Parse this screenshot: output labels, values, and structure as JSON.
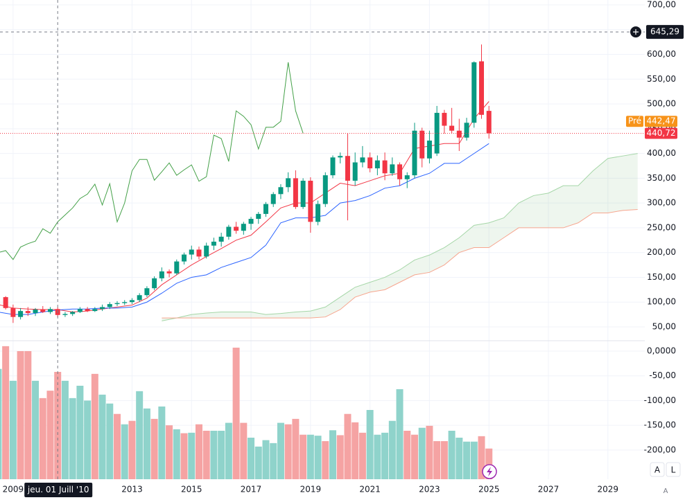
{
  "chart_data": [
    {
      "type": "candlestick",
      "x": [
        2008.75,
        2009,
        2009.25,
        2009.5,
        2009.75,
        2010,
        2010.25,
        2010.5,
        2010.75,
        2011,
        2011.25,
        2011.5,
        2011.75,
        2012,
        2012.25,
        2012.5,
        2012.75,
        2013,
        2013.25,
        2013.5,
        2013.75,
        2014,
        2014.25,
        2014.5,
        2014.75,
        2015,
        2015.25,
        2015.5,
        2015.75,
        2016,
        2016.25,
        2016.5,
        2016.75,
        2017,
        2017.25,
        2017.5,
        2017.75,
        2018,
        2018.25,
        2018.5,
        2018.75,
        2019,
        2019.25,
        2019.5,
        2019.75,
        2020,
        2020.25,
        2020.5,
        2020.75,
        2021,
        2021.25,
        2021.5,
        2021.75,
        2022,
        2022.25,
        2022.5,
        2022.75,
        2023,
        2023.25,
        2023.5,
        2023.75,
        2024,
        2024.25,
        2024.5,
        2024.75,
        2025
      ],
      "open": [
        110,
        88,
        70,
        82,
        78,
        85,
        80,
        86,
        74,
        76,
        80,
        86,
        82,
        86,
        90,
        96,
        98,
        100,
        104,
        114,
        128,
        148,
        162,
        158,
        182,
        196,
        206,
        192,
        214,
        222,
        232,
        252,
        244,
        258,
        268,
        278,
        298,
        318,
        332,
        350,
        292,
        345,
        262,
        298,
        356,
        392,
        395,
        345,
        382,
        392,
        370,
        386,
        360,
        378,
        348,
        356,
        446,
        390,
        400,
        482,
        456,
        446,
        432,
        462,
        586,
        486
      ],
      "high": [
        112,
        95,
        88,
        90,
        88,
        92,
        90,
        90,
        80,
        82,
        90,
        90,
        90,
        95,
        100,
        102,
        104,
        108,
        118,
        132,
        152,
        170,
        166,
        186,
        200,
        214,
        212,
        220,
        230,
        240,
        256,
        262,
        262,
        272,
        282,
        302,
        322,
        338,
        362,
        366,
        350,
        352,
        305,
        362,
        396,
        402,
        440,
        402,
        415,
        402,
        396,
        402,
        392,
        382,
        362,
        462,
        452,
        446,
        496,
        488,
        492,
        470,
        472,
        586,
        620,
        496
      ],
      "low": [
        85,
        58,
        65,
        72,
        72,
        78,
        76,
        70,
        70,
        72,
        78,
        80,
        80,
        82,
        86,
        92,
        94,
        96,
        100,
        110,
        124,
        142,
        150,
        155,
        176,
        186,
        186,
        188,
        205,
        212,
        226,
        238,
        236,
        246,
        258,
        272,
        292,
        308,
        322,
        288,
        288,
        240,
        255,
        292,
        350,
        380,
        265,
        335,
        372,
        362,
        356,
        346,
        355,
        335,
        330,
        350,
        372,
        380,
        395,
        440,
        440,
        405,
        426,
        452,
        470,
        430
      ],
      "close": [
        88,
        70,
        82,
        78,
        85,
        80,
        86,
        74,
        76,
        80,
        86,
        82,
        86,
        90,
        96,
        98,
        100,
        104,
        114,
        128,
        148,
        162,
        158,
        182,
        196,
        206,
        192,
        214,
        222,
        232,
        252,
        244,
        258,
        268,
        278,
        298,
        318,
        332,
        350,
        292,
        345,
        262,
        298,
        356,
        392,
        395,
        345,
        382,
        392,
        370,
        386,
        360,
        378,
        348,
        356,
        446,
        390,
        426,
        482,
        456,
        446,
        432,
        462,
        584,
        478,
        440.72
      ],
      "up_color": "#089981",
      "down_color": "#f23645",
      "series": [
        {
          "color": "#f23645",
          "x": [
            2008.5,
            2009,
            2009.5,
            2010,
            2010.5,
            2011,
            2011.5,
            2012,
            2012.5,
            2013,
            2013.5,
            2014,
            2014.5,
            2015,
            2015.5,
            2016,
            2016.5,
            2017,
            2017.5,
            2018,
            2018.5,
            2019,
            2019.5,
            2020,
            2020.5,
            2021,
            2021.5,
            2022,
            2022.5,
            2023,
            2023.5,
            2024,
            2024.5,
            2025
          ],
          "values": [
            95,
            88,
            86,
            85,
            85,
            80,
            82,
            86,
            90,
            94,
            108,
            135,
            155,
            175,
            192,
            208,
            225,
            235,
            262,
            290,
            300,
            300,
            320,
            340,
            335,
            345,
            355,
            360,
            410,
            415,
            420,
            420,
            470,
            505
          ]
        },
        {
          "color": "#2962ff",
          "x": [
            2008.5,
            2009,
            2009.5,
            2010,
            2010.5,
            2011,
            2011.5,
            2012,
            2012.5,
            2013,
            2013.5,
            2014,
            2014.5,
            2015,
            2015.5,
            2016,
            2016.5,
            2017,
            2017.5,
            2018,
            2018.5,
            2019,
            2019.5,
            2020,
            2020.5,
            2021,
            2021.5,
            2022,
            2022.5,
            2023,
            2023.5,
            2024,
            2024.5,
            2025
          ],
          "values": [
            80,
            75,
            75,
            80,
            84,
            86,
            86,
            88,
            88,
            90,
            100,
            118,
            138,
            150,
            155,
            170,
            180,
            190,
            215,
            260,
            270,
            270,
            275,
            300,
            305,
            315,
            330,
            335,
            350,
            360,
            380,
            380,
            400,
            420
          ]
        },
        {
          "color": "#43a047",
          "x": [
            2008.5,
            2008.75,
            2009,
            2009.25,
            2009.5,
            2009.75,
            2010,
            2010.25,
            2010.5,
            2010.75,
            2011,
            2011.25,
            2011.5,
            2011.75,
            2012,
            2012.25,
            2012.5,
            2012.75,
            2013,
            2013.25,
            2013.5,
            2013.75,
            2014,
            2014.25,
            2014.5,
            2014.75,
            2015,
            2015.25,
            2015.5,
            2015.75,
            2016,
            2016.25,
            2016.5,
            2016.75,
            2017,
            2017.25,
            2017.5,
            2017.75,
            2018,
            2018.25,
            2018.5,
            2018.75
          ],
          "values": [
            200,
            204,
            186,
            211,
            218,
            223,
            248,
            239,
            262,
            276,
            290,
            309,
            318,
            338,
            296,
            339,
            262,
            300,
            365,
            388,
            388,
            346,
            363,
            381,
            356,
            367,
            377,
            344,
            353,
            437,
            430,
            384,
            486,
            475,
            458,
            409,
            453,
            453,
            465,
            584,
            486,
            441
          ]
        }
      ],
      "cloud": {
        "fill": "rgba(67,160,71,0.09)",
        "series": [
          {
            "color": "#a5d6a7",
            "x": [
              2014,
              2014.5,
              2015,
              2015.5,
              2016,
              2016.5,
              2017,
              2017.5,
              2018,
              2018.5,
              2019,
              2019.5,
              2020,
              2020.5,
              2021,
              2021.5,
              2022,
              2022.5,
              2023,
              2023.5,
              2024,
              2024.5,
              2025,
              2025.5,
              2026,
              2026.5,
              2027,
              2027.5,
              2028,
              2028.5,
              2029,
              2029.5,
              2030
            ],
            "values": [
              62,
              68,
              75,
              78,
              80,
              80,
              80,
              75,
              77,
              80,
              82,
              90,
              110,
              130,
              140,
              150,
              165,
              185,
              195,
              210,
              230,
              255,
              260,
              270,
              300,
              315,
              320,
              335,
              335,
              365,
              390,
              395,
              400
            ]
          },
          {
            "color": "#f7a58e",
            "x": [
              2014,
              2014.5,
              2015,
              2015.5,
              2016,
              2016.5,
              2017,
              2017.5,
              2018,
              2018.5,
              2019,
              2019.5,
              2020,
              2020.5,
              2021,
              2021.5,
              2022,
              2022.5,
              2023,
              2023.5,
              2024,
              2024.5,
              2025,
              2025.5,
              2026,
              2026.5,
              2027,
              2027.5,
              2028,
              2028.5,
              2029,
              2029.5,
              2030
            ],
            "values": [
              68,
              68,
              68,
              68,
              68,
              68,
              68,
              68,
              68,
              68,
              68,
              70,
              85,
              110,
              120,
              125,
              140,
              155,
              160,
              175,
              200,
              210,
              210,
              230,
              250,
              250,
              250,
              250,
              260,
              280,
              280,
              285,
              287
            ]
          }
        ]
      },
      "xlim": [
        2008.56,
        2030.24
      ],
      "ylim": [
        50,
        700
      ],
      "xticks": [
        2009,
        2013,
        2015,
        2017,
        2019,
        2021,
        2023,
        2025,
        2027,
        2029
      ],
      "yticks": [
        {
          "value": 700,
          "label": "700,00"
        },
        {
          "value": 650,
          "label": "650,00"
        },
        {
          "value": 600,
          "label": "600,00"
        },
        {
          "value": 550,
          "label": "550,00"
        },
        {
          "value": 500,
          "label": "500,00"
        },
        {
          "value": 450,
          "label": "450,00"
        },
        {
          "value": 400,
          "label": "400,00"
        },
        {
          "value": 350,
          "label": "350,00"
        },
        {
          "value": 300,
          "label": "300,00"
        },
        {
          "value": 250,
          "label": "250,00"
        },
        {
          "value": 200,
          "label": "200,00"
        },
        {
          "value": 150,
          "label": "150,00"
        },
        {
          "value": 100,
          "label": "100,00"
        },
        {
          "value": 50,
          "label": "50,00"
        }
      ],
      "last_price": {
        "value": 440.72,
        "label": "440,72",
        "color": "#f23645"
      },
      "pre_market": {
        "tag": "Pré",
        "value": 442.47,
        "label": "442,47",
        "color": "#f7931a"
      },
      "crosshair": {
        "x": 2010.5,
        "x_label": "jeu. 01 Juill '10",
        "y": 645.29,
        "y_label": "645,29"
      }
    },
    {
      "type": "bar",
      "x": [
        2008.5,
        2008.75,
        2009,
        2009.25,
        2009.5,
        2009.75,
        2010,
        2010.25,
        2010.5,
        2010.75,
        2011,
        2011.25,
        2011.5,
        2011.75,
        2012,
        2012.25,
        2012.5,
        2012.75,
        2013,
        2013.25,
        2013.5,
        2013.75,
        2014,
        2014.25,
        2014.5,
        2014.75,
        2015,
        2015.25,
        2015.5,
        2015.75,
        2016,
        2016.25,
        2016.5,
        2016.75,
        2017,
        2017.25,
        2017.5,
        2017.75,
        2018,
        2018.25,
        2018.5,
        2018.75,
        2019,
        2019.25,
        2019.5,
        2019.75,
        2020,
        2020.25,
        2020.5,
        2020.75,
        2021,
        2021.25,
        2021.5,
        2021.75,
        2022,
        2022.25,
        2022.5,
        2022.75,
        2023,
        2023.25,
        2023.5,
        2023.75,
        2024,
        2024.25,
        2024.5,
        2024.75,
        2025
      ],
      "values": [
        -36,
        10,
        -60,
        0,
        0,
        -60,
        -95,
        -80,
        -42,
        -60,
        -95,
        -70,
        -100,
        -46,
        -88,
        -106,
        -127,
        -148,
        -141,
        -81,
        -116,
        -137,
        -112,
        -150,
        -158,
        -166,
        -165,
        -148,
        -161,
        -161,
        -161,
        -145,
        7,
        -145,
        -175,
        -193,
        -180,
        -186,
        -145,
        -148,
        -137,
        -169,
        -169,
        -171,
        -182,
        -160,
        -170,
        -127,
        -144,
        -165,
        -119,
        -169,
        -165,
        -141,
        -77,
        -161,
        -169,
        -155,
        -151,
        -182,
        -182,
        -161,
        -175,
        -183,
        -183,
        -172,
        -197
      ],
      "colors": [
        "#8fd3cb",
        "#f5a3a3",
        "#8fd3cb",
        "#f5a3a3",
        "#f5a3a3",
        "#8fd3cb",
        "#f5a3a3",
        "#f5a3a3",
        "#f5a3a3",
        "#8fd3cb",
        "#8fd3cb",
        "#8fd3cb",
        "#8fd3cb",
        "#f5a3a3",
        "#8fd3cb",
        "#8fd3cb",
        "#f5a3a3",
        "#8fd3cb",
        "#f5a3a3",
        "#8fd3cb",
        "#8fd3cb",
        "#f5a3a3",
        "#8fd3cb",
        "#f5a3a3",
        "#8fd3cb",
        "#f5a3a3",
        "#8fd3cb",
        "#f5a3a3",
        "#f5a3a3",
        "#8fd3cb",
        "#8fd3cb",
        "#8fd3cb",
        "#f5a3a3",
        "#f5a3a3",
        "#8fd3cb",
        "#8fd3cb",
        "#8fd3cb",
        "#8fd3cb",
        "#8fd3cb",
        "#f5a3a3",
        "#f5a3a3",
        "#f5a3a3",
        "#8fd3cb",
        "#8fd3cb",
        "#f5a3a3",
        "#8fd3cb",
        "#f5a3a3",
        "#f5a3a3",
        "#f5a3a3",
        "#f5a3a3",
        "#8fd3cb",
        "#8fd3cb",
        "#8fd3cb",
        "#8fd3cb",
        "#8fd3cb",
        "#f5a3a3",
        "#f5a3a3",
        "#8fd3cb",
        "#f5a3a3",
        "#f5a3a3",
        "#f5a3a3",
        "#8fd3cb",
        "#8fd3cb",
        "#8fd3cb",
        "#8fd3cb",
        "#f5a3a3",
        "#f5a3a3"
      ],
      "xlim": [
        2008.56,
        2030.24
      ],
      "ylim": [
        -259,
        21
      ],
      "yticks": [
        {
          "value": 0,
          "label": "0,0000"
        },
        {
          "value": -50,
          "label": "-50,00"
        },
        {
          "value": -100,
          "label": "-100,00"
        },
        {
          "value": -150,
          "label": "-150,00"
        },
        {
          "value": -200,
          "label": "-200,00"
        }
      ]
    }
  ],
  "ui": {
    "buttons": [
      "A",
      "L"
    ],
    "scale_mode": "A"
  }
}
